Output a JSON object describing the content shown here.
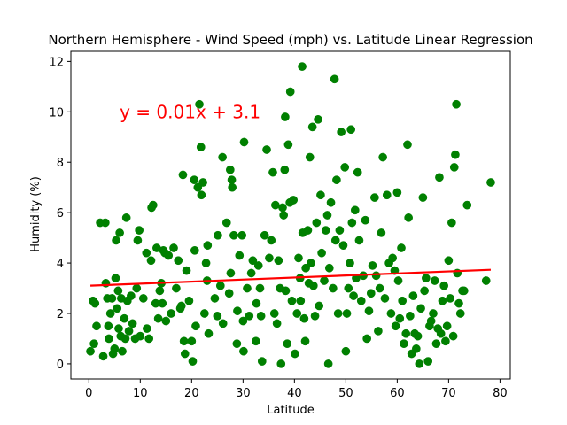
{
  "chart_data": {
    "type": "scatter",
    "title": "Northern Hemisphere - Wind Speed (mph) vs. Latitude Linear Regression",
    "xlabel": "Latitude",
    "ylabel": "Humidity (%)",
    "xlim": [
      -3.5,
      82
    ],
    "ylim": [
      -0.6,
      12.4
    ],
    "xticks": [
      0,
      10,
      20,
      30,
      40,
      50,
      60,
      70,
      80
    ],
    "yticks": [
      0,
      2,
      4,
      6,
      8,
      10,
      12
    ],
    "grid": false,
    "point_color": "#008000",
    "regression_color": "#ff0000",
    "equation_color": "#ff0000",
    "annotation": {
      "text": "y = 0.01x + 3.1",
      "x": 6,
      "y": 10
    },
    "regression_line": {
      "slope": 0.0081,
      "intercept": 3.1,
      "x_start": 0.3,
      "x_end": 78.2
    },
    "points": [
      [
        0.3,
        0.5
      ],
      [
        0.8,
        2.5
      ],
      [
        1.0,
        0.8
      ],
      [
        1.2,
        2.4
      ],
      [
        1.5,
        1.5
      ],
      [
        2.2,
        5.6
      ],
      [
        2.8,
        0.3
      ],
      [
        3.2,
        5.6
      ],
      [
        3.3,
        3.2
      ],
      [
        3.6,
        2.6
      ],
      [
        3.8,
        1.5
      ],
      [
        3.9,
        1.0
      ],
      [
        4.2,
        2.0
      ],
      [
        4.5,
        2.6
      ],
      [
        4.7,
        0.4
      ],
      [
        5.0,
        0.6
      ],
      [
        5.2,
        3.4
      ],
      [
        5.3,
        4.9
      ],
      [
        5.5,
        2.2
      ],
      [
        5.7,
        2.9
      ],
      [
        5.8,
        1.4
      ],
      [
        6.0,
        5.2
      ],
      [
        6.2,
        1.1
      ],
      [
        6.3,
        2.6
      ],
      [
        6.5,
        0.5
      ],
      [
        6.9,
        1.8
      ],
      [
        7.1,
        1.0
      ],
      [
        7.3,
        5.8
      ],
      [
        7.5,
        2.5
      ],
      [
        7.8,
        1.3
      ],
      [
        8.2,
        2.7
      ],
      [
        8.5,
        1.6
      ],
      [
        9.0,
        1.0
      ],
      [
        9.3,
        3.0
      ],
      [
        9.5,
        4.9
      ],
      [
        9.8,
        5.3
      ],
      [
        10.0,
        1.1
      ],
      [
        10.6,
        2.6
      ],
      [
        11.2,
        4.4
      ],
      [
        11.3,
        1.4
      ],
      [
        11.7,
        1.0
      ],
      [
        12.1,
        4.1
      ],
      [
        12.2,
        6.2
      ],
      [
        12.5,
        6.3
      ],
      [
        13.0,
        2.4
      ],
      [
        13.2,
        4.6
      ],
      [
        13.5,
        1.8
      ],
      [
        13.8,
        2.9
      ],
      [
        14.1,
        3.2
      ],
      [
        14.3,
        2.4
      ],
      [
        14.5,
        4.5
      ],
      [
        14.8,
        4.4
      ],
      [
        15.0,
        1.7
      ],
      [
        15.5,
        4.3
      ],
      [
        16.0,
        2.0
      ],
      [
        16.5,
        4.6
      ],
      [
        17.0,
        3.0
      ],
      [
        17.4,
        4.1
      ],
      [
        17.8,
        2.2
      ],
      [
        18.0,
        2.3
      ],
      [
        18.3,
        7.5
      ],
      [
        18.5,
        0.9
      ],
      [
        18.7,
        0.4
      ],
      [
        19.0,
        3.7
      ],
      [
        19.5,
        2.5
      ],
      [
        20.0,
        0.9
      ],
      [
        20.2,
        0.1
      ],
      [
        20.5,
        7.3
      ],
      [
        20.6,
        4.5
      ],
      [
        20.8,
        1.5
      ],
      [
        21.2,
        7.0
      ],
      [
        21.5,
        10.3
      ],
      [
        21.8,
        8.6
      ],
      [
        21.9,
        6.7
      ],
      [
        22.2,
        7.2
      ],
      [
        22.5,
        2.0
      ],
      [
        22.8,
        4.0
      ],
      [
        23.0,
        3.3
      ],
      [
        23.1,
        4.7
      ],
      [
        23.3,
        1.2
      ],
      [
        24.5,
        2.6
      ],
      [
        25.0,
        1.9
      ],
      [
        25.1,
        5.1
      ],
      [
        25.6,
        3.1
      ],
      [
        26.0,
        8.2
      ],
      [
        26.1,
        1.6
      ],
      [
        26.8,
        5.6
      ],
      [
        27.3,
        2.8
      ],
      [
        27.5,
        7.7
      ],
      [
        27.6,
        3.6
      ],
      [
        27.8,
        7.3
      ],
      [
        27.9,
        7.0
      ],
      [
        28.2,
        5.1
      ],
      [
        28.8,
        0.8
      ],
      [
        28.9,
        2.1
      ],
      [
        29.3,
        4.3
      ],
      [
        29.8,
        5.1
      ],
      [
        30.0,
        1.7
      ],
      [
        30.1,
        0.5
      ],
      [
        30.2,
        8.8
      ],
      [
        30.8,
        3.0
      ],
      [
        31.2,
        1.9
      ],
      [
        31.6,
        3.6
      ],
      [
        31.9,
        4.1
      ],
      [
        32.5,
        0.9
      ],
      [
        32.6,
        2.4
      ],
      [
        33.0,
        3.9
      ],
      [
        33.3,
        3.0
      ],
      [
        33.5,
        1.9
      ],
      [
        33.7,
        0.1
      ],
      [
        34.2,
        5.1
      ],
      [
        34.6,
        8.5
      ],
      [
        35.1,
        4.2
      ],
      [
        35.5,
        4.9
      ],
      [
        35.8,
        7.6
      ],
      [
        36.1,
        2.0
      ],
      [
        36.3,
        6.3
      ],
      [
        36.6,
        1.6
      ],
      [
        36.9,
        4.1
      ],
      [
        37.2,
        3.0
      ],
      [
        37.4,
        0.0
      ],
      [
        37.7,
        6.2
      ],
      [
        37.9,
        5.9
      ],
      [
        38.1,
        7.7
      ],
      [
        38.2,
        9.8
      ],
      [
        38.3,
        2.9
      ],
      [
        38.6,
        0.8
      ],
      [
        38.8,
        8.7
      ],
      [
        39.1,
        6.4
      ],
      [
        39.2,
        10.8
      ],
      [
        39.5,
        2.5
      ],
      [
        39.8,
        6.5
      ],
      [
        40.1,
        0.4
      ],
      [
        40.5,
        2.0
      ],
      [
        40.8,
        4.2
      ],
      [
        41.1,
        3.4
      ],
      [
        41.2,
        2.5
      ],
      [
        41.5,
        11.8
      ],
      [
        41.6,
        5.2
      ],
      [
        41.9,
        1.8
      ],
      [
        42.1,
        0.9
      ],
      [
        42.2,
        3.8
      ],
      [
        42.6,
        5.3
      ],
      [
        42.8,
        3.2
      ],
      [
        43.0,
        8.2
      ],
      [
        43.2,
        4.0
      ],
      [
        43.5,
        9.4
      ],
      [
        43.7,
        3.1
      ],
      [
        44.0,
        1.9
      ],
      [
        44.3,
        5.6
      ],
      [
        44.6,
        9.7
      ],
      [
        44.8,
        2.3
      ],
      [
        45.1,
        6.7
      ],
      [
        45.3,
        4.4
      ],
      [
        45.8,
        3.3
      ],
      [
        46.1,
        5.3
      ],
      [
        46.4,
        5.9
      ],
      [
        46.6,
        0.0
      ],
      [
        46.8,
        3.8
      ],
      [
        47.1,
        6.4
      ],
      [
        47.5,
        3.0
      ],
      [
        47.8,
        11.3
      ],
      [
        48.0,
        4.9
      ],
      [
        48.2,
        7.3
      ],
      [
        48.5,
        2.0
      ],
      [
        48.8,
        5.3
      ],
      [
        49.1,
        9.2
      ],
      [
        49.5,
        4.7
      ],
      [
        49.8,
        7.8
      ],
      [
        50.0,
        0.5
      ],
      [
        50.2,
        2.0
      ],
      [
        50.5,
        3.0
      ],
      [
        50.8,
        4.0
      ],
      [
        51.0,
        9.3
      ],
      [
        51.2,
        5.6
      ],
      [
        51.5,
        2.7
      ],
      [
        51.8,
        6.1
      ],
      [
        52.0,
        3.4
      ],
      [
        52.3,
        7.6
      ],
      [
        52.6,
        4.9
      ],
      [
        53.0,
        2.5
      ],
      [
        53.4,
        3.5
      ],
      [
        53.8,
        5.7
      ],
      [
        54.1,
        1.0
      ],
      [
        54.5,
        2.1
      ],
      [
        54.9,
        2.8
      ],
      [
        55.2,
        3.9
      ],
      [
        55.6,
        6.6
      ],
      [
        55.9,
        3.5
      ],
      [
        56.3,
        1.3
      ],
      [
        56.6,
        3.0
      ],
      [
        56.9,
        5.2
      ],
      [
        57.2,
        8.2
      ],
      [
        57.6,
        2.6
      ],
      [
        58.0,
        6.7
      ],
      [
        58.4,
        4.0
      ],
      [
        58.8,
        2.0
      ],
      [
        59.1,
        4.2
      ],
      [
        59.5,
        3.7
      ],
      [
        59.7,
        1.5
      ],
      [
        60.0,
        6.8
      ],
      [
        60.2,
        3.3
      ],
      [
        60.5,
        1.8
      ],
      [
        60.8,
        4.6
      ],
      [
        61.0,
        2.5
      ],
      [
        61.3,
        0.8
      ],
      [
        61.7,
        1.2
      ],
      [
        62.0,
        8.7
      ],
      [
        62.2,
        5.8
      ],
      [
        62.5,
        1.9
      ],
      [
        62.8,
        0.4
      ],
      [
        63.1,
        2.7
      ],
      [
        63.4,
        1.2
      ],
      [
        63.7,
        0.6
      ],
      [
        64.0,
        1.1
      ],
      [
        64.3,
        0.0
      ],
      [
        64.6,
        2.2
      ],
      [
        65.0,
        6.6
      ],
      [
        65.3,
        2.9
      ],
      [
        65.6,
        3.4
      ],
      [
        66.0,
        0.1
      ],
      [
        66.3,
        1.5
      ],
      [
        66.6,
        1.7
      ],
      [
        67.0,
        2.0
      ],
      [
        67.3,
        3.3
      ],
      [
        67.6,
        0.8
      ],
      [
        67.9,
        1.4
      ],
      [
        68.2,
        7.4
      ],
      [
        68.5,
        1.2
      ],
      [
        68.8,
        2.5
      ],
      [
        69.1,
        3.1
      ],
      [
        69.4,
        0.9
      ],
      [
        69.7,
        1.5
      ],
      [
        70.0,
        4.1
      ],
      [
        70.3,
        2.6
      ],
      [
        70.6,
        5.6
      ],
      [
        70.9,
        1.1
      ],
      [
        71.1,
        7.8
      ],
      [
        71.3,
        8.3
      ],
      [
        71.5,
        10.3
      ],
      [
        71.7,
        3.6
      ],
      [
        72.0,
        2.4
      ],
      [
        72.3,
        2.0
      ],
      [
        72.7,
        2.9
      ],
      [
        73.0,
        2.9
      ],
      [
        73.6,
        6.3
      ],
      [
        77.3,
        3.3
      ],
      [
        78.2,
        7.2
      ]
    ]
  }
}
